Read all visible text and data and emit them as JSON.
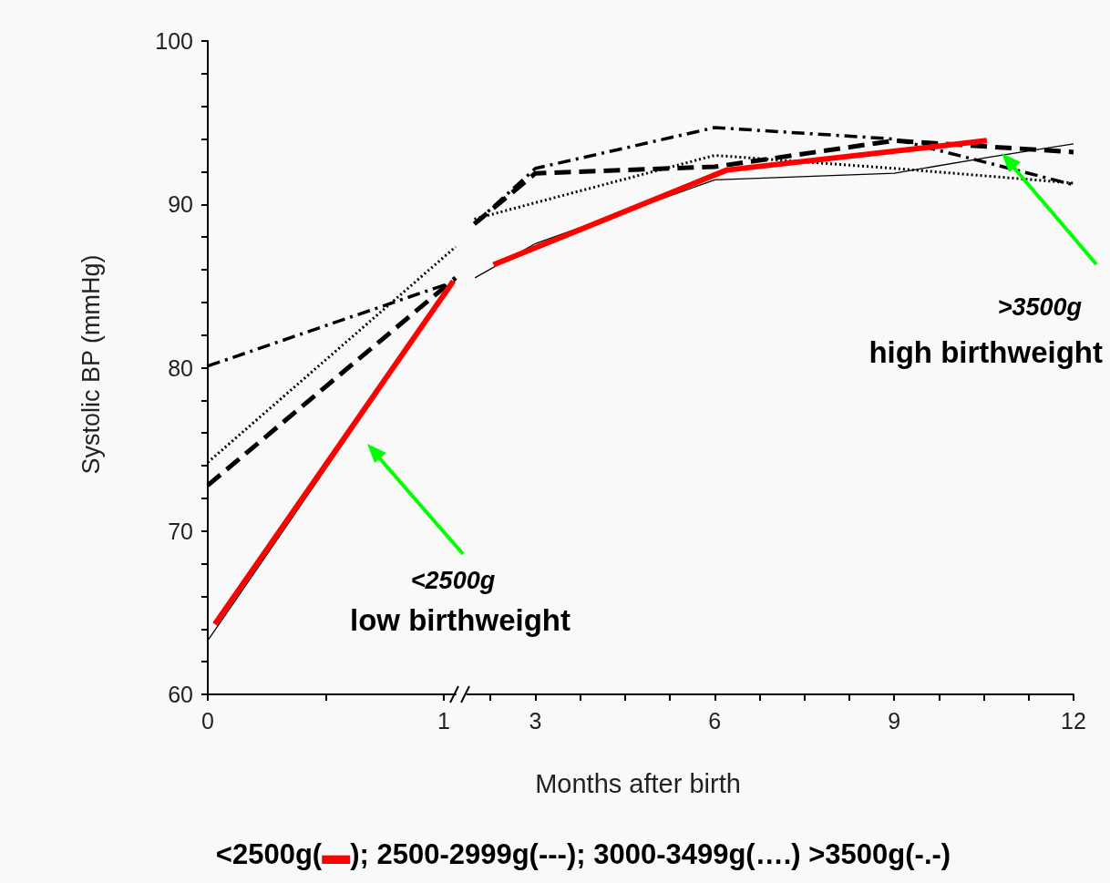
{
  "chart_data": [
    {
      "type": "line",
      "ylabel": "Systolic BP (mmHg)",
      "xlim": [
        0,
        1.05
      ],
      "xticks": [
        0,
        {
          "value": 0.5,
          "label": null
        },
        1
      ],
      "ylim": [
        60,
        100
      ],
      "yticks": [
        60,
        {
          "value": 62,
          "label": null
        },
        {
          "value": 64,
          "label": null
        },
        {
          "value": 66,
          "label": null
        },
        {
          "value": 68,
          "label": null
        },
        70,
        {
          "value": 72,
          "label": null
        },
        {
          "value": 74,
          "label": null
        },
        {
          "value": 76,
          "label": null
        },
        {
          "value": 78,
          "label": null
        },
        80,
        {
          "value": 82,
          "label": null
        },
        {
          "value": 84,
          "label": null
        },
        {
          "value": 86,
          "label": null
        },
        {
          "value": 88,
          "label": null
        },
        90,
        {
          "value": 92,
          "label": null
        },
        {
          "value": 94,
          "label": null
        },
        {
          "value": 96,
          "label": null
        },
        {
          "value": 98,
          "label": null
        },
        100
      ],
      "grid": false,
      "marker": "none",
      "series": [
        {
          "color": "#000000",
          "line_style": "solid",
          "x": [
            0,
            1.05
          ],
          "values": [
            63.3,
            85.4
          ]
        },
        {
          "color": "#000000",
          "line_style": "dashed",
          "x": [
            0,
            1.05
          ],
          "values": [
            72.8,
            85.5
          ]
        },
        {
          "color": "#000000",
          "line_style": "dotted",
          "x": [
            0,
            1.05
          ],
          "values": [
            74.2,
            87.4
          ]
        },
        {
          "color": "#000000",
          "line_style": "dashdot",
          "x": [
            0,
            1.05
          ],
          "values": [
            80.1,
            85.3
          ]
        },
        {
          "color": "#ff0000",
          "line_style": "solid",
          "x": [
            0.03,
            1.04
          ],
          "values": [
            64.3,
            85.3
          ]
        }
      ]
    },
    {
      "type": "line",
      "xlabel": "Months after birth",
      "xlim": [
        1.85,
        12
      ],
      "xticks": [
        {
          "value": 2.25,
          "label": null
        },
        3,
        {
          "value": 3.75,
          "label": null
        },
        {
          "value": 4.5,
          "label": null
        },
        {
          "value": 5.25,
          "label": null
        },
        6,
        {
          "value": 6.75,
          "label": null
        },
        {
          "value": 7.5,
          "label": null
        },
        {
          "value": 8.25,
          "label": null
        },
        9,
        {
          "value": 9.75,
          "label": null
        },
        {
          "value": 10.5,
          "label": null
        },
        {
          "value": 11.25,
          "label": null
        },
        12
      ],
      "ylim": [
        60,
        100
      ],
      "tick_labels": "x",
      "grid": false,
      "marker": "none",
      "annotations": [
        "<2500g",
        "low birthweight",
        ">3500g",
        "high birthweight",
        "<2500g(▬); 2500-2999g(---); 3000-3499g(….) >3500g(-.-)"
      ],
      "series": [
        {
          "color": "#000000",
          "line_style": "solid",
          "x": [
            1.99,
            3,
            6,
            9,
            10.6,
            12
          ],
          "values": [
            85.5,
            87.6,
            91.5,
            91.9,
            92.9,
            93.7
          ]
        },
        {
          "color": "#000000",
          "line_style": "dashed",
          "x": [
            1.98,
            3,
            6,
            9,
            12
          ],
          "values": [
            88.8,
            91.9,
            92.3,
            93.9,
            93.2
          ]
        },
        {
          "color": "#000000",
          "line_style": "dotted",
          "x": [
            1.98,
            3,
            6,
            9,
            12
          ],
          "values": [
            89.1,
            90.1,
            93.0,
            92.2,
            91.3
          ]
        },
        {
          "color": "#000000",
          "line_style": "dashdot",
          "x": [
            1.98,
            3,
            6,
            9,
            12
          ],
          "values": [
            88.8,
            92.2,
            94.7,
            94.0,
            91.2
          ]
        },
        {
          "color": "#ff0000",
          "line_style": "solid",
          "x": [
            2.3,
            6.2,
            10.55
          ],
          "values": [
            86.3,
            92.1,
            93.9
          ]
        }
      ]
    }
  ]
}
